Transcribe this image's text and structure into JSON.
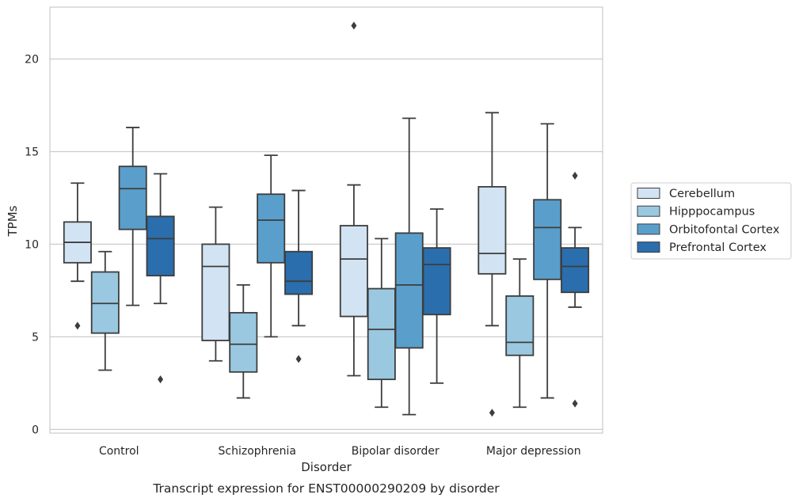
{
  "chart_data": {
    "type": "box",
    "caption": "Transcript expression for ENST00000290209 by disorder",
    "xlabel": "Disorder",
    "ylabel": "TPMs",
    "ylim": [
      -0.2,
      22.8
    ],
    "yticks": [
      0,
      5,
      10,
      15,
      20
    ],
    "grid": "horizontal",
    "legend_position": "right",
    "categories": [
      "Control",
      "Schizophrenia",
      "Bipolar disorder",
      "Major depression"
    ],
    "series": [
      {
        "name": "Cerebellum",
        "color": "#d2e3f3",
        "boxes": [
          {
            "whisker_low": 8.0,
            "q1": 9.0,
            "median": 10.1,
            "q3": 11.2,
            "whisker_high": 13.3,
            "outliers": [
              5.6
            ]
          },
          {
            "whisker_low": 3.7,
            "q1": 4.8,
            "median": 8.8,
            "q3": 10.0,
            "whisker_high": 12.0,
            "outliers": []
          },
          {
            "whisker_low": 2.9,
            "q1": 6.1,
            "median": 9.2,
            "q3": 11.0,
            "whisker_high": 13.2,
            "outliers": [
              21.8
            ]
          },
          {
            "whisker_low": 5.6,
            "q1": 8.4,
            "median": 9.5,
            "q3": 13.1,
            "whisker_high": 17.1,
            "outliers": [
              0.9
            ]
          }
        ]
      },
      {
        "name": "Hipppocampus",
        "color": "#9ac8e0",
        "boxes": [
          {
            "whisker_low": 3.2,
            "q1": 5.2,
            "median": 6.8,
            "q3": 8.5,
            "whisker_high": 9.6,
            "outliers": []
          },
          {
            "whisker_low": 1.7,
            "q1": 3.1,
            "median": 4.6,
            "q3": 6.3,
            "whisker_high": 7.8,
            "outliers": []
          },
          {
            "whisker_low": 1.2,
            "q1": 2.7,
            "median": 5.4,
            "q3": 7.6,
            "whisker_high": 10.3,
            "outliers": []
          },
          {
            "whisker_low": 1.2,
            "q1": 4.0,
            "median": 4.7,
            "q3": 7.2,
            "whisker_high": 9.2,
            "outliers": []
          }
        ]
      },
      {
        "name": "Orbitofontal Cortex",
        "color": "#5a9fcb",
        "boxes": [
          {
            "whisker_low": 6.7,
            "q1": 10.8,
            "median": 13.0,
            "q3": 14.2,
            "whisker_high": 16.3,
            "outliers": []
          },
          {
            "whisker_low": 5.0,
            "q1": 9.0,
            "median": 11.3,
            "q3": 12.7,
            "whisker_high": 14.8,
            "outliers": []
          },
          {
            "whisker_low": 0.8,
            "q1": 4.4,
            "median": 7.8,
            "q3": 10.6,
            "whisker_high": 16.8,
            "outliers": []
          },
          {
            "whisker_low": 1.7,
            "q1": 8.1,
            "median": 10.9,
            "q3": 12.4,
            "whisker_high": 16.5,
            "outliers": []
          }
        ]
      },
      {
        "name": "Prefrontal Cortex",
        "color": "#2a6ead",
        "boxes": [
          {
            "whisker_low": 6.8,
            "q1": 8.3,
            "median": 10.3,
            "q3": 11.5,
            "whisker_high": 13.8,
            "outliers": [
              2.7
            ]
          },
          {
            "whisker_low": 5.6,
            "q1": 7.3,
            "median": 8.0,
            "q3": 9.6,
            "whisker_high": 12.9,
            "outliers": [
              3.8
            ]
          },
          {
            "whisker_low": 2.5,
            "q1": 6.2,
            "median": 8.9,
            "q3": 9.8,
            "whisker_high": 11.9,
            "outliers": []
          },
          {
            "whisker_low": 6.6,
            "q1": 7.4,
            "median": 8.8,
            "q3": 9.8,
            "whisker_high": 10.9,
            "outliers": [
              13.7,
              1.4
            ]
          }
        ]
      }
    ]
  }
}
